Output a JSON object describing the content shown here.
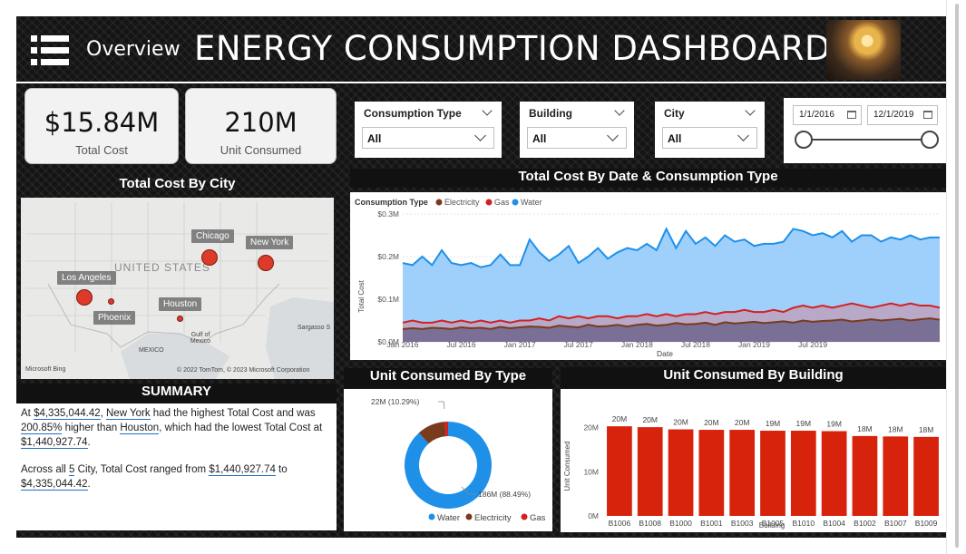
{
  "header": {
    "menu_icon": "hamburger-menu-icon",
    "overview_label": "Overview",
    "title": "ENERGY CONSUMPTION DASHBOARD",
    "image": "lightbulb-image"
  },
  "kpis": [
    {
      "value": "$15.84M",
      "label": "Total Cost"
    },
    {
      "value": "210M",
      "label": "Unit Consumed"
    }
  ],
  "slicers": [
    {
      "title": "Consumption Type",
      "value": "All"
    },
    {
      "title": "Building",
      "value": "All"
    },
    {
      "title": "City",
      "value": "All"
    }
  ],
  "date_range": {
    "start": "1/1/2016",
    "end": "12/1/2019"
  },
  "map": {
    "title": "Total Cost By City",
    "country_label": "UNITED STATES",
    "cities": [
      "Chicago",
      "New York",
      "Los Angeles",
      "Houston",
      "Phoenix"
    ],
    "labels": {
      "gulf": "Gulf of Mexico",
      "mexico": "MEXICO",
      "sargasso": "Sargasso S"
    },
    "attribution_left": "Microsoft Bing",
    "attribution_right": "© 2022 TomTom, © 2023 Microsoft Corporation"
  },
  "summary": {
    "title": "SUMMARY",
    "p1": {
      "a": "At ",
      "amount_high": "$4,335,044.42",
      "b": ", ",
      "city_high": "New York",
      "c": " had the highest Total Cost and was ",
      "pct": "200.85%",
      "d": " higher than ",
      "city_low": "Houston",
      "e": ", which had the lowest Total Cost at ",
      "amount_low": "$1,440,927.74",
      "f": "."
    },
    "p2": {
      "a": "Across all ",
      "count": "5",
      "b": " City, Total Cost ranged from ",
      "min": "$1,440,927.74",
      "c": " to ",
      "max": "$4,335,044.42",
      "d": "."
    }
  },
  "colors": {
    "water": "#1e90e8",
    "electricity": "#7a3a1e",
    "gas": "#d42020",
    "bar": "#d8230c"
  },
  "chart_data": [
    {
      "type": "area",
      "title": "Total Cost By Date & Consumption Type",
      "legend_title": "Consumption Type",
      "legend": [
        "Electricity",
        "Gas",
        "Water"
      ],
      "xlabel": "Date",
      "ylabel": "Total Cost",
      "y_ticks": [
        "$0.0M",
        "$0.1M",
        "$0.2M",
        "$0.3M"
      ],
      "ylim": [
        0,
        0.3
      ],
      "x_ticks": [
        "Jan 2016",
        "Jul 2016",
        "Jan 2017",
        "Jul 2017",
        "Jan 2018",
        "Jul 2018",
        "Jan 2019",
        "Jul 2019"
      ],
      "x_start": "Jan 2016",
      "x_end": "Dec 2019",
      "series": [
        {
          "name": "Water",
          "values": [
            0.185,
            0.18,
            0.2,
            0.18,
            0.215,
            0.185,
            0.18,
            0.185,
            0.175,
            0.18,
            0.205,
            0.18,
            0.18,
            0.24,
            0.21,
            0.19,
            0.205,
            0.225,
            0.185,
            0.2,
            0.22,
            0.195,
            0.21,
            0.22,
            0.215,
            0.23,
            0.215,
            0.265,
            0.22,
            0.26,
            0.23,
            0.245,
            0.225,
            0.25,
            0.235,
            0.24,
            0.225,
            0.23,
            0.23,
            0.235,
            0.265,
            0.26,
            0.25,
            0.255,
            0.245,
            0.26,
            0.235,
            0.25,
            0.25,
            0.235,
            0.245,
            0.24,
            0.25,
            0.24,
            0.245,
            0.245
          ]
        },
        {
          "name": "Gas",
          "values": [
            0.045,
            0.05,
            0.045,
            0.045,
            0.05,
            0.045,
            0.05,
            0.045,
            0.05,
            0.045,
            0.05,
            0.045,
            0.05,
            0.05,
            0.055,
            0.05,
            0.06,
            0.055,
            0.06,
            0.055,
            0.06,
            0.06,
            0.055,
            0.06,
            0.06,
            0.065,
            0.06,
            0.065,
            0.06,
            0.065,
            0.065,
            0.07,
            0.065,
            0.07,
            0.07,
            0.075,
            0.07,
            0.07,
            0.075,
            0.07,
            0.08,
            0.085,
            0.08,
            0.085,
            0.08,
            0.085,
            0.09,
            0.085,
            0.08,
            0.085,
            0.09,
            0.085,
            0.09,
            0.085,
            0.085,
            0.08
          ]
        },
        {
          "name": "Electricity",
          "values": [
            0.03,
            0.032,
            0.03,
            0.033,
            0.032,
            0.03,
            0.034,
            0.032,
            0.033,
            0.03,
            0.035,
            0.032,
            0.034,
            0.036,
            0.035,
            0.033,
            0.038,
            0.036,
            0.034,
            0.04,
            0.036,
            0.037,
            0.04,
            0.036,
            0.04,
            0.042,
            0.038,
            0.04,
            0.044,
            0.041,
            0.042,
            0.045,
            0.04,
            0.046,
            0.043,
            0.045,
            0.047,
            0.044,
            0.046,
            0.048,
            0.045,
            0.05,
            0.047,
            0.049,
            0.05,
            0.052,
            0.048,
            0.05,
            0.053,
            0.05,
            0.052,
            0.054,
            0.05,
            0.053,
            0.055,
            0.052
          ]
        }
      ]
    },
    {
      "type": "pie",
      "title": "Unit Consumed By Type",
      "legend": [
        "Water",
        "Electricity",
        "Gas"
      ],
      "slices": [
        {
          "name": "Water",
          "value": 186,
          "label": "186M (88.49%)"
        },
        {
          "name": "Electricity",
          "value": 22,
          "label": "22M (10.29%)"
        },
        {
          "name": "Gas",
          "value": 2.6,
          "label": ""
        }
      ]
    },
    {
      "type": "bar",
      "title": "Unit Consumed By Building",
      "xlabel": "Building",
      "ylabel": "Unit Consumed",
      "y_ticks": [
        "0M",
        "10M",
        "20M"
      ],
      "ylim": [
        0,
        23
      ],
      "categories": [
        "B1006",
        "B1008",
        "B1000",
        "B1001",
        "B1003",
        "B1005",
        "B1010",
        "B1004",
        "B1002",
        "B1007",
        "B1009"
      ],
      "values": [
        20.3,
        20.1,
        19.6,
        19.5,
        19.5,
        19.3,
        19.3,
        19.2,
        18.1,
        18.0,
        17.9
      ],
      "labels": [
        "20M",
        "20M",
        "20M",
        "20M",
        "20M",
        "19M",
        "19M",
        "19M",
        "18M",
        "18M",
        "18M"
      ]
    }
  ]
}
